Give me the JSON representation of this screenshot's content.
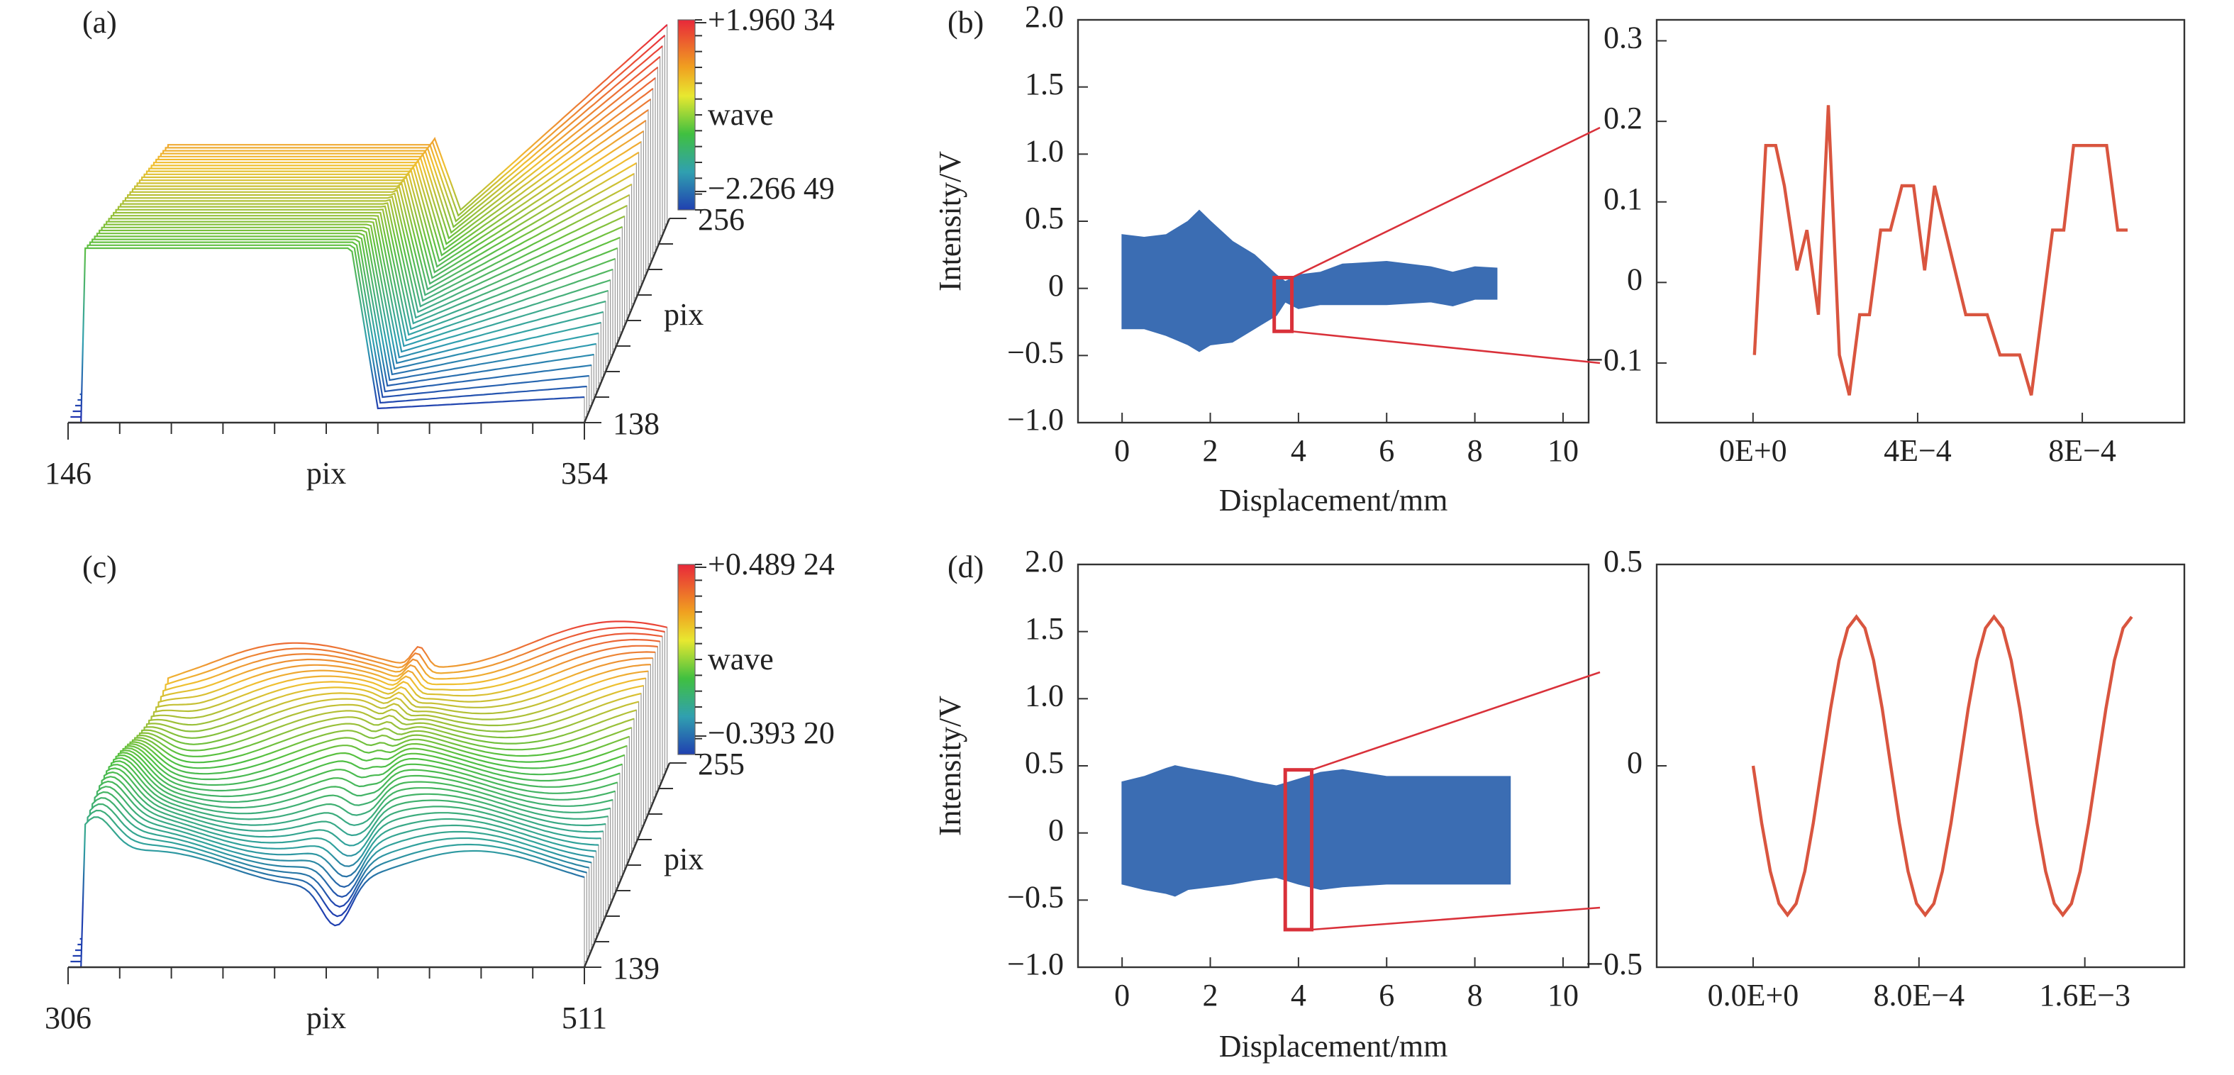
{
  "chart_data": [
    {
      "type": "waterfall3d",
      "label": "(a)",
      "xlim": [
        146,
        354
      ],
      "xticks": [
        146,
        354
      ],
      "xlabel": "pix",
      "ylim": [
        138,
        256
      ],
      "yticks": [
        138,
        256
      ],
      "ylabel": "pix",
      "colorbar": {
        "label": "wave",
        "ticks": [
          {
            "value": 1.96034,
            "label": "+1.960 34"
          },
          {
            "value": -2.26649,
            "label": "−2.266 49"
          }
        ]
      }
    },
    {
      "type": "envelope",
      "label": "(b)",
      "color": "#3b6db3",
      "x": [
        0,
        0.5,
        1,
        1.5,
        1.75,
        2,
        2.5,
        3,
        3.5,
        3.7,
        4,
        4.5,
        5,
        6,
        7,
        7.5,
        8,
        8.5
      ],
      "upper": [
        0.4,
        0.38,
        0.4,
        0.5,
        0.58,
        0.5,
        0.35,
        0.25,
        0.1,
        0.05,
        0.1,
        0.12,
        0.18,
        0.2,
        0.16,
        0.12,
        0.16,
        0.15
      ],
      "lower": [
        -0.3,
        -0.3,
        -0.35,
        -0.42,
        -0.47,
        -0.42,
        -0.4,
        -0.3,
        -0.2,
        -0.1,
        -0.15,
        -0.12,
        -0.12,
        -0.12,
        -0.1,
        -0.13,
        -0.08,
        -0.08
      ],
      "xlim": [
        -1,
        10.58
      ],
      "xticks": [
        0,
        2,
        4,
        6,
        8,
        10
      ],
      "xlabel": "Displacement/mm",
      "ylim": [
        -1,
        2
      ],
      "yticks": [
        {
          "value": -1,
          "label": "−1.0"
        },
        {
          "value": -0.5,
          "label": "−0.5"
        },
        0,
        {
          "value": 0.5,
          "label": "0.5"
        },
        {
          "value": 1,
          "label": "1.0"
        },
        {
          "value": 1.5,
          "label": "1.5"
        },
        {
          "value": 2,
          "label": "2.0"
        }
      ],
      "ylabel": "Intensity/V",
      "zoom_box": {
        "xlim": [
          3.45,
          3.85
        ],
        "ylim": [
          -0.32,
          0.08
        ],
        "color": "#d9313a"
      }
    },
    {
      "type": "line",
      "color": "#d9553f",
      "x": [
        3.4e-06,
        3.1e-05,
        5.5e-05,
        7.6e-05,
        0.000107,
        0.000131,
        0.000159,
        0.000183,
        0.00021,
        0.000234,
        0.000259,
        0.000283,
        0.00031,
        0.000334,
        0.000362,
        0.00039,
        0.000417,
        0.000441,
        0.000517,
        0.000569,
        0.0006,
        0.000648,
        0.000676,
        0.000728,
        0.000755,
        0.000779,
        0.000859,
        0.000886,
        0.00091
      ],
      "values": [
        -0.09,
        0.17,
        0.17,
        0.12,
        0.015,
        0.065,
        -0.04,
        0.22,
        -0.09,
        -0.14,
        -0.04,
        -0.04,
        0.065,
        0.065,
        0.12,
        0.12,
        0.015,
        0.12,
        -0.04,
        -0.04,
        -0.09,
        -0.09,
        -0.14,
        0.065,
        0.065,
        0.17,
        0.17,
        0.065,
        0.065
      ],
      "xlim": [
        -0.000234,
        0.001048
      ],
      "xticks": [
        {
          "value": 0,
          "label": "0E+0"
        },
        {
          "value": 0.0004,
          "label": "4E−4"
        },
        {
          "value": 0.0008,
          "label": "8E−4"
        }
      ],
      "ylim": [
        -0.174,
        0.326
      ],
      "yticks": [
        {
          "value": -0.1,
          "label": "−0.1"
        },
        0,
        0.1,
        0.2,
        0.3
      ]
    },
    {
      "type": "waterfall3d",
      "label": "(c)",
      "xlim": [
        306,
        511
      ],
      "xticks": [
        306,
        511
      ],
      "xlabel": "pix",
      "ylim": [
        139,
        255
      ],
      "yticks": [
        139,
        255
      ],
      "ylabel": "pix",
      "colorbar": {
        "label": "wave",
        "ticks": [
          {
            "value": 0.48924,
            "label": "+0.489 24"
          },
          {
            "value": -0.3932,
            "label": "−0.393 20"
          }
        ]
      }
    },
    {
      "type": "envelope",
      "label": "(d)",
      "color": "#3b6db3",
      "x": [
        0,
        0.5,
        1,
        1.2,
        1.5,
        2,
        2.5,
        3,
        3.5,
        4,
        4.5,
        5,
        6,
        7,
        8,
        8.8
      ],
      "upper": [
        0.38,
        0.42,
        0.48,
        0.5,
        0.48,
        0.45,
        0.42,
        0.38,
        0.35,
        0.4,
        0.45,
        0.47,
        0.42,
        0.42,
        0.42,
        0.42
      ],
      "lower": [
        -0.38,
        -0.42,
        -0.45,
        -0.47,
        -0.42,
        -0.4,
        -0.38,
        -0.35,
        -0.33,
        -0.38,
        -0.42,
        -0.4,
        -0.38,
        -0.38,
        -0.38,
        -0.38
      ],
      "xlim": [
        -1,
        10.58
      ],
      "xticks": [
        0,
        2,
        4,
        6,
        8,
        10
      ],
      "xlabel": "Displacement/mm",
      "ylim": [
        -1,
        2
      ],
      "yticks": [
        {
          "value": -1,
          "label": "−1.0"
        },
        {
          "value": -0.5,
          "label": "−0.5"
        },
        0,
        {
          "value": 0.5,
          "label": "0.5"
        },
        {
          "value": 1,
          "label": "1.0"
        },
        {
          "value": 1.5,
          "label": "1.5"
        },
        {
          "value": 2,
          "label": "2.0"
        }
      ],
      "ylabel": "Intensity/V",
      "zoom_box": {
        "xlim": [
          3.7,
          4.3
        ],
        "ylim": [
          -0.72,
          0.47
        ],
        "color": "#d9313a"
      }
    },
    {
      "type": "line",
      "color": "#d9553f",
      "x": [
        0,
        4.15e-05,
        8.3e-05,
        0.0001245,
        0.000166,
        0.0002075,
        0.000249,
        0.0002905,
        0.000332,
        0.0003735,
        0.000415,
        0.0004565,
        0.000498,
        0.0005395,
        0.000581,
        0.0006225,
        0.000664,
        0.0007055,
        0.000747,
        0.0007885,
        0.00083,
        0.0008715,
        0.000913,
        0.0009545,
        0.000996,
        0.0010375,
        0.001079,
        0.0011205,
        0.001162,
        0.0012035,
        0.001245,
        0.0012865,
        0.001328,
        0.0013695,
        0.001411,
        0.0014525,
        0.001494,
        0.0015355,
        0.001577,
        0.0016185,
        0.00166,
        0.0017015,
        0.001743,
        0.0017845,
        0.001826
      ],
      "values": [
        0,
        -0.142,
        -0.262,
        -0.342,
        -0.37,
        -0.342,
        -0.262,
        -0.142,
        0,
        0.142,
        0.262,
        0.342,
        0.37,
        0.342,
        0.262,
        0.142,
        0,
        -0.142,
        -0.262,
        -0.342,
        -0.37,
        -0.342,
        -0.262,
        -0.142,
        0,
        0.142,
        0.262,
        0.342,
        0.37,
        0.342,
        0.262,
        0.142,
        0,
        -0.142,
        -0.262,
        -0.342,
        -0.37,
        -0.342,
        -0.262,
        -0.142,
        0,
        0.142,
        0.262,
        0.342,
        0.37
      ],
      "xlim": [
        -0.000465,
        0.00208
      ],
      "xticks": [
        {
          "value": 0,
          "label": "0.0E+0"
        },
        {
          "value": 0.0008,
          "label": "8.0E−4"
        },
        {
          "value": 0.0016,
          "label": "1.6E−3"
        }
      ],
      "ylim": [
        -0.5,
        0.5
      ],
      "yticks": [
        {
          "value": -0.5,
          "label": "−0.5"
        },
        0,
        0.5
      ]
    }
  ]
}
